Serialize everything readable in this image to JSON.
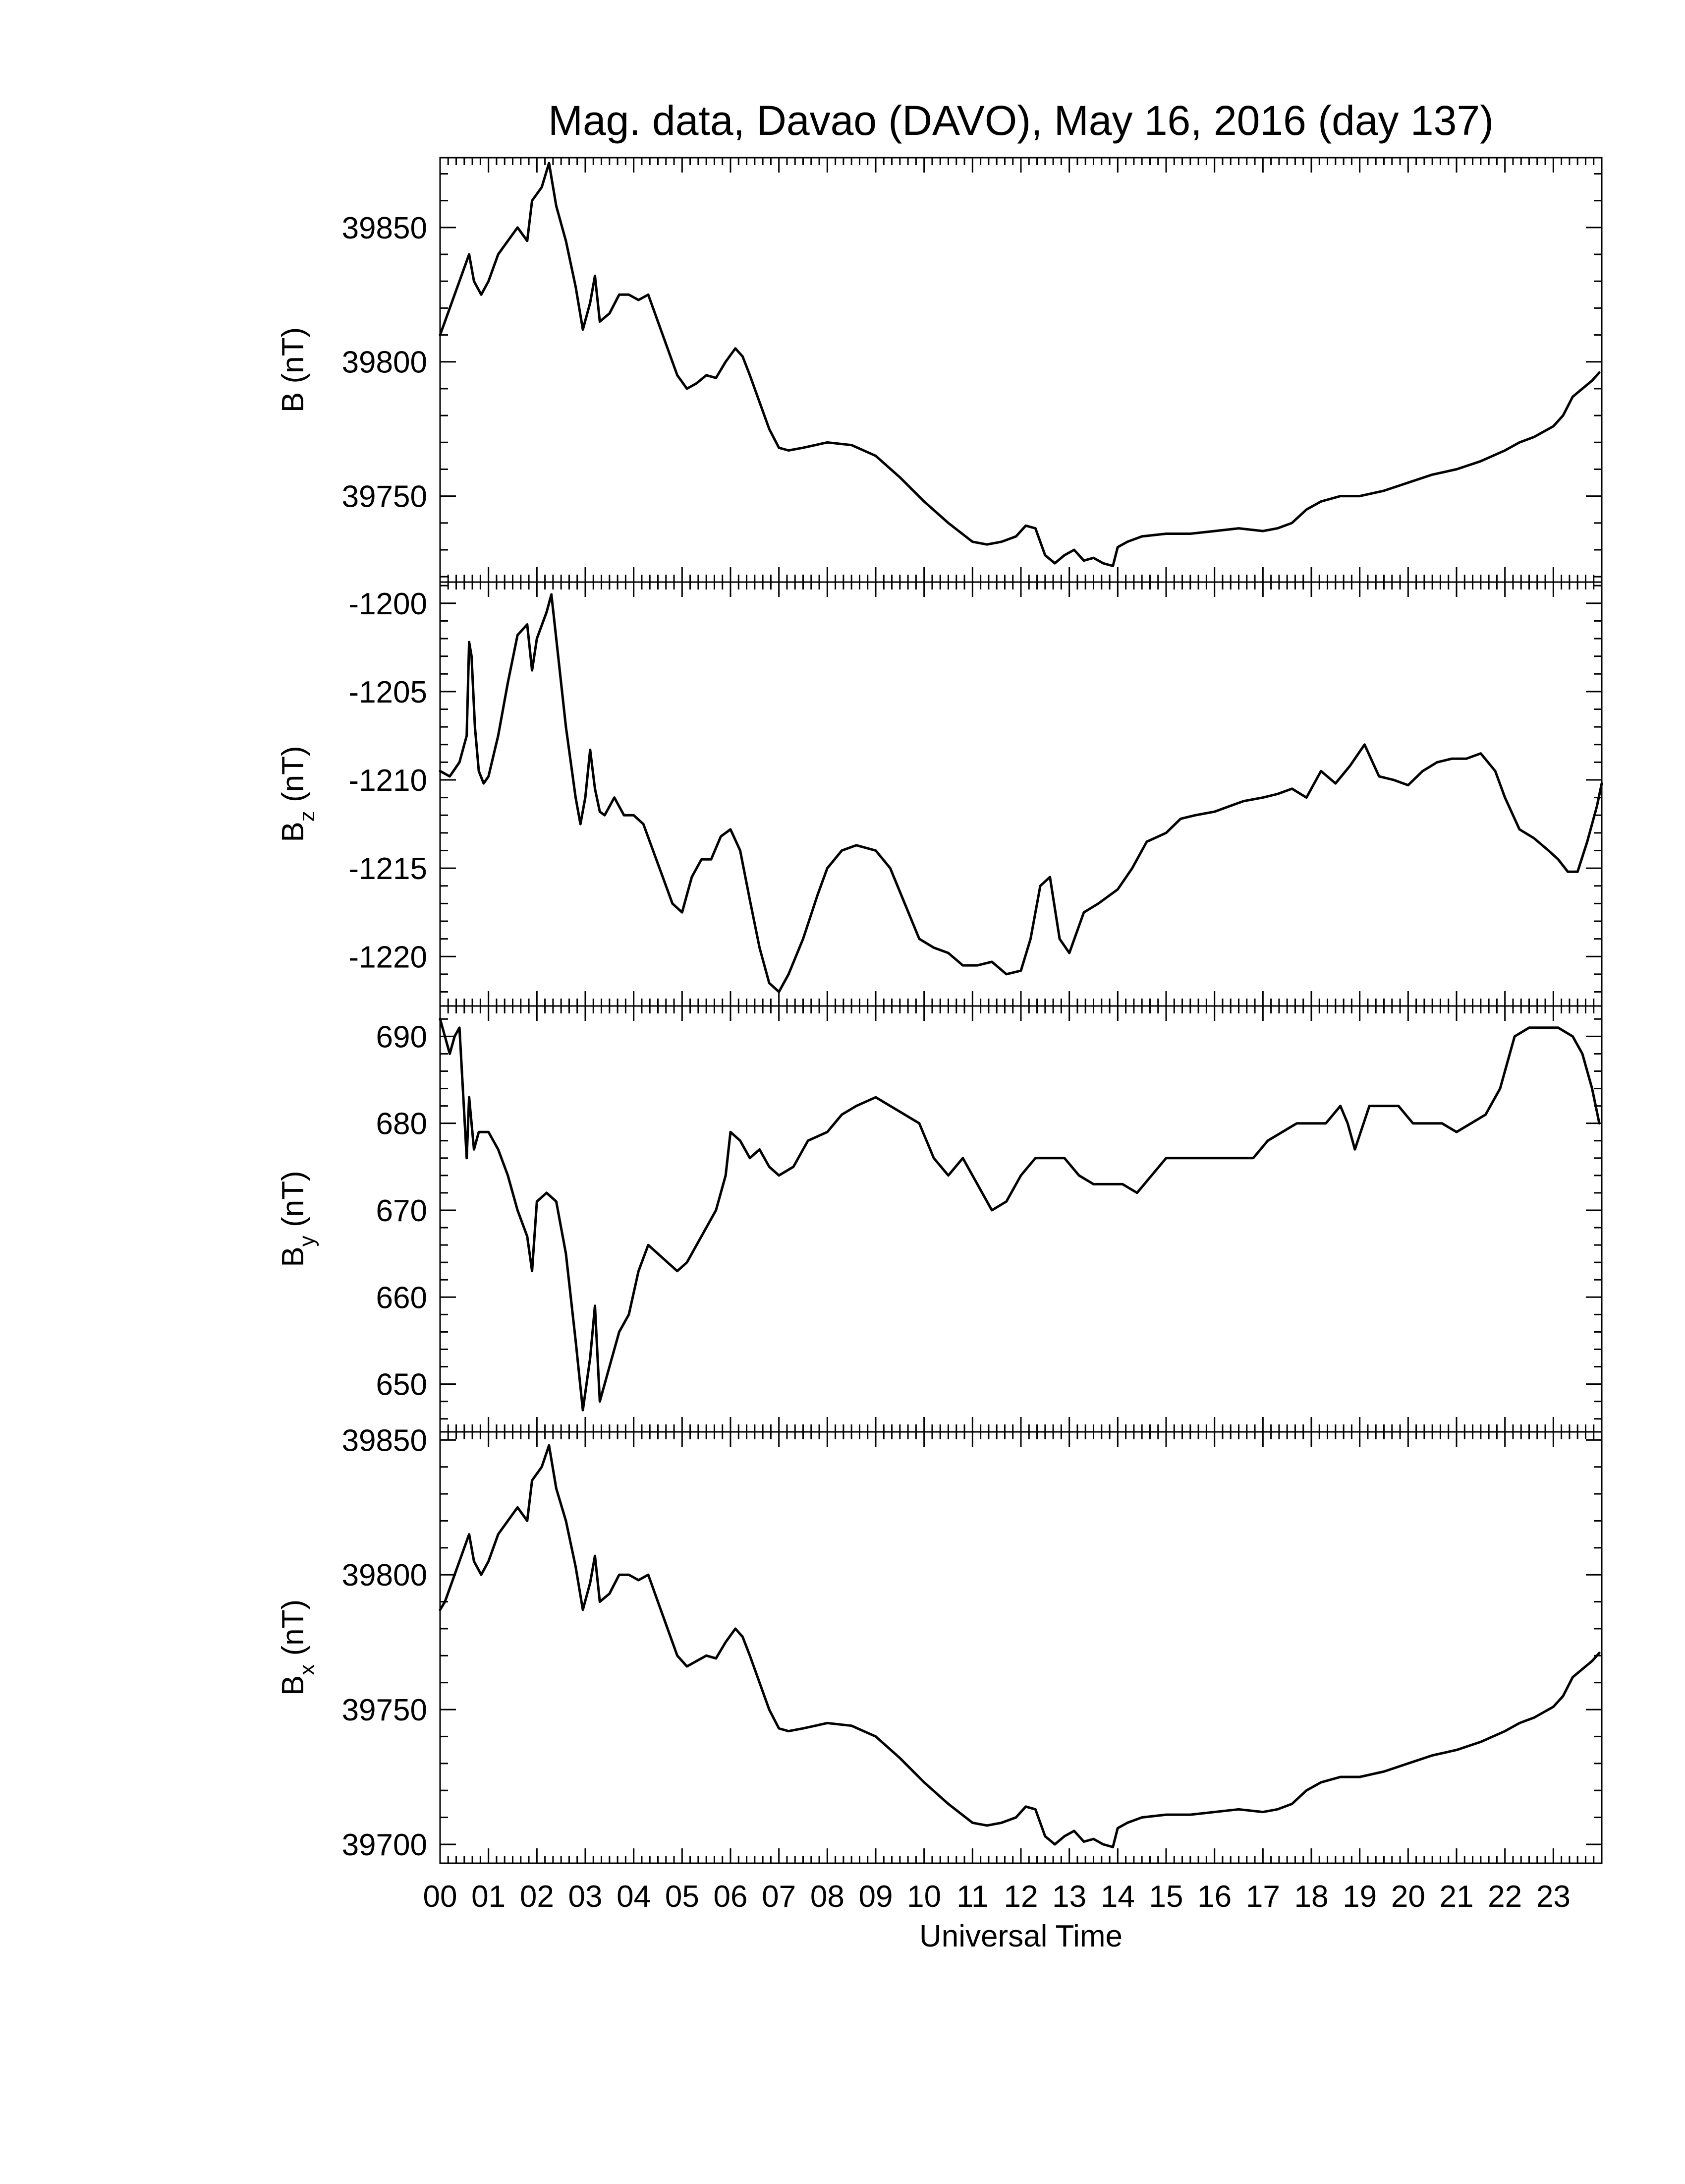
{
  "chart_data": {
    "type": "line",
    "title": "Mag. data, Davao (DAVO), May 16, 2016 (day 137)",
    "xlabel": "Universal Time",
    "x_ticks": [
      "00",
      "01",
      "02",
      "03",
      "04",
      "05",
      "06",
      "07",
      "08",
      "09",
      "10",
      "11",
      "12",
      "13",
      "14",
      "15",
      "16",
      "17",
      "18",
      "19",
      "20",
      "21",
      "22",
      "23"
    ],
    "xlim": [
      0,
      24
    ],
    "panels": [
      {
        "name": "B",
        "ylabel_main": "B",
        "ylabel_sub": "",
        "ylabel_unit": "(nT)",
        "ylim": [
          39718,
          39876
        ],
        "yticks": [
          39750,
          39800,
          39850
        ],
        "ytick_labels": [
          "39750",
          "39800",
          "39850"
        ],
        "series": [
          {
            "x": [
              0.0,
              0.1,
              0.3,
              0.5,
              0.6,
              0.7,
              0.85,
              1.0,
              1.2,
              1.4,
              1.6,
              1.8,
              1.9,
              2.1,
              2.25,
              2.4,
              2.6,
              2.8,
              2.95,
              3.1,
              3.2,
              3.3,
              3.5,
              3.7,
              3.9,
              4.1,
              4.3,
              4.5,
              4.7,
              4.9,
              5.1,
              5.3,
              5.5,
              5.7,
              5.9,
              6.1,
              6.25,
              6.4,
              6.6,
              6.8,
              7.0,
              7.2,
              7.5,
              8.0,
              8.5,
              9.0,
              9.5,
              10.0,
              10.5,
              11.0,
              11.3,
              11.6,
              11.9,
              12.1,
              12.3,
              12.5,
              12.7,
              12.9,
              13.1,
              13.3,
              13.5,
              13.7,
              13.9,
              14.0,
              14.2,
              14.5,
              15.0,
              15.5,
              16.0,
              16.5,
              17.0,
              17.3,
              17.6,
              17.9,
              18.2,
              18.6,
              19.0,
              19.5,
              20.0,
              20.5,
              21.0,
              21.5,
              22.0,
              22.3,
              22.6,
              22.8,
              23.0,
              23.2,
              23.4,
              23.6,
              23.8,
              23.95
            ],
            "y": [
              39810,
              39815,
              39825,
              39835,
              39840,
              39830,
              39825,
              39830,
              39840,
              39845,
              39850,
              39845,
              39860,
              39865,
              39874,
              39858,
              39845,
              39828,
              39812,
              39822,
              39832,
              39815,
              39818,
              39825,
              39825,
              39823,
              39825,
              39815,
              39805,
              39795,
              39790,
              39792,
              39795,
              39794,
              39800,
              39805,
              39802,
              39795,
              39785,
              39775,
              39768,
              39767,
              39768,
              39770,
              39769,
              39765,
              39757,
              39748,
              39740,
              39733,
              39732,
              39733,
              39735,
              39739,
              39738,
              39728,
              39725,
              39728,
              39730,
              39726,
              39727,
              39725,
              39724,
              39731,
              39733,
              39735,
              39736,
              39736,
              39737,
              39738,
              39737,
              39738,
              39740,
              39745,
              39748,
              39750,
              39750,
              39752,
              39755,
              39758,
              39760,
              39763,
              39767,
              39770,
              39772,
              39774,
              39776,
              39780,
              39787,
              39790,
              39793,
              39796
            ]
          }
        ]
      },
      {
        "name": "Bz",
        "ylabel_main": "B",
        "ylabel_sub": "z",
        "ylabel_unit": "(nT)",
        "ylim": [
          -1222.8,
          -1198.8
        ],
        "yticks": [
          -1220,
          -1215,
          -1210,
          -1205,
          -1200
        ],
        "ytick_labels": [
          "-1220",
          "-1215",
          "-1210",
          "-1205",
          "-1200"
        ],
        "series": [
          {
            "x": [
              0.0,
              0.2,
              0.4,
              0.55,
              0.6,
              0.65,
              0.72,
              0.8,
              0.9,
              1.0,
              1.2,
              1.4,
              1.6,
              1.8,
              1.9,
              2.0,
              2.2,
              2.3,
              2.4,
              2.6,
              2.8,
              2.9,
              3.0,
              3.1,
              3.2,
              3.3,
              3.4,
              3.6,
              3.8,
              4.0,
              4.2,
              4.4,
              4.6,
              4.8,
              5.0,
              5.2,
              5.4,
              5.6,
              5.8,
              6.0,
              6.2,
              6.4,
              6.6,
              6.8,
              7.0,
              7.2,
              7.5,
              7.8,
              8.0,
              8.3,
              8.6,
              9.0,
              9.3,
              9.6,
              9.9,
              10.2,
              10.5,
              10.8,
              11.1,
              11.4,
              11.7,
              12.0,
              12.2,
              12.4,
              12.6,
              12.8,
              13.0,
              13.3,
              13.6,
              14.0,
              14.3,
              14.6,
              15.0,
              15.3,
              15.6,
              16.0,
              16.3,
              16.6,
              17.0,
              17.3,
              17.6,
              17.9,
              18.2,
              18.5,
              18.8,
              19.1,
              19.4,
              19.7,
              20.0,
              20.3,
              20.6,
              20.9,
              21.2,
              21.5,
              21.8,
              22.0,
              22.3,
              22.6,
              22.9,
              23.1,
              23.3,
              23.5,
              23.7,
              23.9,
              24.0
            ],
            "y": [
              -1209.5,
              -1209.8,
              -1209,
              -1207.5,
              -1202.2,
              -1203,
              -1207,
              -1209.5,
              -1210.2,
              -1209.8,
              -1207.5,
              -1204.5,
              -1201.8,
              -1201.2,
              -1203.8,
              -1202,
              -1200.5,
              -1199.5,
              -1202,
              -1207,
              -1211,
              -1212.5,
              -1211,
              -1208.3,
              -1210.5,
              -1211.8,
              -1212,
              -1211,
              -1212,
              -1212,
              -1212.5,
              -1214,
              -1215.5,
              -1217,
              -1217.5,
              -1215.5,
              -1214.5,
              -1214.5,
              -1213.2,
              -1212.8,
              -1214,
              -1216.8,
              -1219.5,
              -1221.5,
              -1222,
              -1221,
              -1219,
              -1216.5,
              -1215,
              -1214,
              -1213.7,
              -1214,
              -1215,
              -1217,
              -1219,
              -1219.5,
              -1219.8,
              -1220.5,
              -1220.5,
              -1220.3,
              -1221,
              -1220.8,
              -1219,
              -1216,
              -1215.5,
              -1219,
              -1219.8,
              -1217.5,
              -1217,
              -1216.2,
              -1215,
              -1213.5,
              -1213,
              -1212.2,
              -1212,
              -1211.8,
              -1211.5,
              -1211.2,
              -1211,
              -1210.8,
              -1210.5,
              -1211,
              -1209.5,
              -1210.2,
              -1209.2,
              -1208,
              -1209.8,
              -1210,
              -1210.3,
              -1209.5,
              -1209,
              -1208.8,
              -1208.8,
              -1208.5,
              -1209.5,
              -1211,
              -1212.8,
              -1213.3,
              -1214,
              -1214.5,
              -1215.2,
              -1215.2,
              -1213.5,
              -1211.5,
              -1210.2
            ]
          }
        ]
      },
      {
        "name": "By",
        "ylabel_main": "B",
        "ylabel_sub": "y",
        "ylabel_unit": "(nT)",
        "ylim": [
          644.5,
          693.5
        ],
        "yticks": [
          650,
          660,
          670,
          680,
          690
        ],
        "ytick_labels": [
          "650",
          "660",
          "670",
          "680",
          "690"
        ],
        "series": [
          {
            "x": [
              0.0,
              0.1,
              0.2,
              0.3,
              0.4,
              0.55,
              0.6,
              0.7,
              0.8,
              1.0,
              1.2,
              1.4,
              1.6,
              1.8,
              1.9,
              2.0,
              2.2,
              2.4,
              2.6,
              2.8,
              2.95,
              3.1,
              3.2,
              3.3,
              3.5,
              3.7,
              3.9,
              4.1,
              4.3,
              4.5,
              4.7,
              4.9,
              5.1,
              5.3,
              5.5,
              5.7,
              5.9,
              6.0,
              6.2,
              6.4,
              6.6,
              6.8,
              7.0,
              7.3,
              7.6,
              8.0,
              8.3,
              8.6,
              9.0,
              9.3,
              9.6,
              9.9,
              10.2,
              10.5,
              10.8,
              11.1,
              11.4,
              11.7,
              12.0,
              12.3,
              12.6,
              12.9,
              13.2,
              13.5,
              13.8,
              14.1,
              14.4,
              14.7,
              15.0,
              15.3,
              15.6,
              15.9,
              16.2,
              16.5,
              16.8,
              17.1,
              17.4,
              17.7,
              18.0,
              18.3,
              18.6,
              18.75,
              18.9,
              19.2,
              19.5,
              19.8,
              20.1,
              20.4,
              20.7,
              21.0,
              21.3,
              21.6,
              21.9,
              22.2,
              22.5,
              22.8,
              23.1,
              23.4,
              23.6,
              23.8,
              23.95
            ],
            "y": [
              692,
              690,
              688,
              690,
              691,
              676,
              683,
              677,
              679,
              679,
              677,
              674,
              670,
              667,
              663,
              671,
              672,
              671,
              665,
              655,
              647,
              653,
              659,
              648,
              652,
              656,
              658,
              663,
              666,
              665,
              664,
              663,
              664,
              666,
              668,
              670,
              674,
              679,
              678,
              676,
              677,
              675,
              674,
              675,
              678,
              679,
              681,
              682,
              683,
              682,
              681,
              680,
              676,
              674,
              676,
              673,
              670,
              671,
              674,
              676,
              676,
              676,
              674,
              673,
              673,
              673,
              672,
              674,
              676,
              676,
              676,
              676,
              676,
              676,
              676,
              678,
              679,
              680,
              680,
              680,
              682,
              680,
              677,
              682,
              682,
              682,
              680,
              680,
              680,
              679,
              680,
              681,
              684,
              690,
              691,
              691,
              691,
              690,
              688,
              684,
              680
            ]
          }
        ]
      },
      {
        "name": "Bx",
        "ylabel_main": "B",
        "ylabel_sub": "x",
        "ylabel_unit": "(nT)",
        "ylim": [
          39693,
          39853
        ],
        "yticks": [
          39700,
          39750,
          39800,
          39850
        ],
        "ytick_labels": [
          "39700",
          "39750",
          "39800",
          "39850"
        ],
        "series": [
          {
            "x": [
              0.0,
              0.1,
              0.3,
              0.5,
              0.6,
              0.7,
              0.85,
              1.0,
              1.2,
              1.4,
              1.6,
              1.8,
              1.9,
              2.1,
              2.25,
              2.4,
              2.6,
              2.8,
              2.95,
              3.1,
              3.2,
              3.3,
              3.5,
              3.7,
              3.9,
              4.1,
              4.3,
              4.5,
              4.7,
              4.9,
              5.1,
              5.3,
              5.5,
              5.7,
              5.9,
              6.1,
              6.25,
              6.4,
              6.6,
              6.8,
              7.0,
              7.2,
              7.5,
              8.0,
              8.5,
              9.0,
              9.5,
              10.0,
              10.5,
              11.0,
              11.3,
              11.6,
              11.9,
              12.1,
              12.3,
              12.5,
              12.7,
              12.9,
              13.1,
              13.3,
              13.5,
              13.7,
              13.9,
              14.0,
              14.2,
              14.5,
              15.0,
              15.5,
              16.0,
              16.5,
              17.0,
              17.3,
              17.6,
              17.9,
              18.2,
              18.6,
              19.0,
              19.5,
              20.0,
              20.5,
              21.0,
              21.5,
              22.0,
              22.3,
              22.6,
              22.8,
              23.0,
              23.2,
              23.4,
              23.6,
              23.8,
              23.95
            ],
            "y": [
              39787,
              39790,
              39800,
              39810,
              39815,
              39805,
              39800,
              39805,
              39815,
              39820,
              39825,
              39820,
              39835,
              39840,
              39848,
              39832,
              39820,
              39803,
              39787,
              39797,
              39807,
              39790,
              39793,
              39800,
              39800,
              39798,
              39800,
              39790,
              39780,
              39770,
              39766,
              39768,
              39770,
              39769,
              39775,
              39780,
              39777,
              39770,
              39760,
              39750,
              39743,
              39742,
              39743,
              39745,
              39744,
              39740,
              39732,
              39723,
              39715,
              39708,
              39707,
              39708,
              39710,
              39714,
              39713,
              39703,
              39700,
              39703,
              39705,
              39701,
              39702,
              39700,
              39699,
              39706,
              39708,
              39710,
              39711,
              39711,
              39712,
              39713,
              39712,
              39713,
              39715,
              39720,
              39723,
              39725,
              39725,
              39727,
              39730,
              39733,
              39735,
              39738,
              39742,
              39745,
              39747,
              39749,
              39751,
              39755,
              39762,
              39765,
              39768,
              39771
            ]
          }
        ]
      }
    ]
  }
}
